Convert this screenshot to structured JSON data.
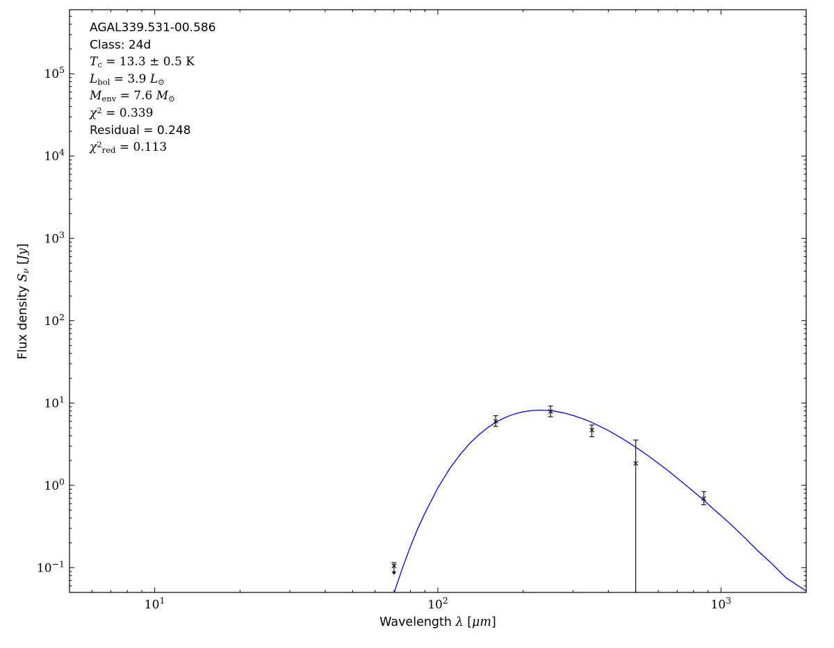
{
  "figure": {
    "background": "#ffffff",
    "frame_color": "#000000"
  },
  "chart_data": {
    "type": "line",
    "title": "",
    "xlabel": "Wavelength *λ* [*μm*]",
    "ylabel": "Flux density *S*_{*ν*} [*Jy*]",
    "xscale": "log",
    "yscale": "log",
    "xlim": [
      5,
      2000
    ],
    "ylim": [
      0.05,
      600000
    ],
    "x_major_ticks": [
      10,
      100,
      1000
    ],
    "y_major_ticks": [
      0.1,
      1,
      10,
      100,
      1000,
      10000,
      100000
    ],
    "grid": false,
    "legend": "none",
    "annotation_lines": [
      {
        "font": "sans",
        "text": "AGAL339.531-00.586"
      },
      {
        "font": "sans",
        "text": "Class: 24d"
      },
      {
        "font": "math",
        "text": "*T*_{c} = 13.3 ± 0.5 K"
      },
      {
        "font": "math",
        "text": "*L*_{bol} = 3.9 *L*_{⊙}"
      },
      {
        "font": "math",
        "text": "*M*_{env} = 7.6 *M*_{⊙}"
      },
      {
        "font": "math",
        "text": "*χ*^{2} = 0.339"
      },
      {
        "font": "sans",
        "text": "Residual = 0.248"
      },
      {
        "font": "math",
        "text": "*χ*^{2}_{red} = 0.113"
      }
    ],
    "fit_curve": {
      "name": "greybody-fit",
      "color": "#0000dd",
      "points": [
        [
          65,
          0.021
        ],
        [
          70,
          0.049
        ],
        [
          75,
          0.099
        ],
        [
          80,
          0.18
        ],
        [
          85,
          0.3
        ],
        [
          90,
          0.46
        ],
        [
          100,
          0.93
        ],
        [
          110,
          1.59
        ],
        [
          120,
          2.38
        ],
        [
          130,
          3.27
        ],
        [
          140,
          4.15
        ],
        [
          150,
          5.02
        ],
        [
          160,
          5.81
        ],
        [
          170,
          6.5
        ],
        [
          180,
          7.05
        ],
        [
          190,
          7.5
        ],
        [
          200,
          7.81
        ],
        [
          215,
          8.1
        ],
        [
          230,
          8.2
        ],
        [
          245,
          8.11
        ],
        [
          260,
          7.93
        ],
        [
          280,
          7.55
        ],
        [
          300,
          7.08
        ],
        [
          330,
          6.32
        ],
        [
          350,
          5.81
        ],
        [
          400,
          4.64
        ],
        [
          450,
          3.67
        ],
        [
          500,
          2.91
        ],
        [
          550,
          2.32
        ],
        [
          600,
          1.86
        ],
        [
          650,
          1.51
        ],
        [
          700,
          1.23
        ],
        [
          750,
          1.01
        ],
        [
          800,
          0.84
        ],
        [
          870,
          0.66
        ],
        [
          950,
          0.5
        ],
        [
          1000,
          0.43
        ],
        [
          1100,
          0.32
        ],
        [
          1200,
          0.24
        ],
        [
          1350,
          0.16
        ],
        [
          1500,
          0.115
        ],
        [
          1700,
          0.075
        ],
        [
          1850,
          0.062
        ],
        [
          2000,
          0.052
        ]
      ]
    },
    "data_points": [
      {
        "wavelength_um": 70,
        "flux_jy": 0.105,
        "err_hi": 0.01,
        "err_lo": 0.017,
        "upper_limit": true,
        "err_to_axis": false
      },
      {
        "wavelength_um": 160,
        "flux_jy": 6.0,
        "err_hi": 1.0,
        "err_lo": 0.8,
        "upper_limit": false,
        "err_to_axis": false
      },
      {
        "wavelength_um": 250,
        "flux_jy": 7.9,
        "err_hi": 1.3,
        "err_lo": 1.1,
        "upper_limit": false,
        "err_to_axis": false
      },
      {
        "wavelength_um": 350,
        "flux_jy": 4.7,
        "err_hi": 0.7,
        "err_lo": 0.8,
        "upper_limit": false,
        "err_to_axis": false
      },
      {
        "wavelength_um": 500,
        "flux_jy": 1.85,
        "err_hi": 1.7,
        "err_lo": null,
        "upper_limit": false,
        "err_to_axis": true
      },
      {
        "wavelength_um": 870,
        "flux_jy": 0.69,
        "err_hi": 0.15,
        "err_lo": 0.11,
        "upper_limit": false,
        "err_to_axis": false
      }
    ],
    "marker": {
      "style": "x",
      "color": "#000000"
    }
  }
}
